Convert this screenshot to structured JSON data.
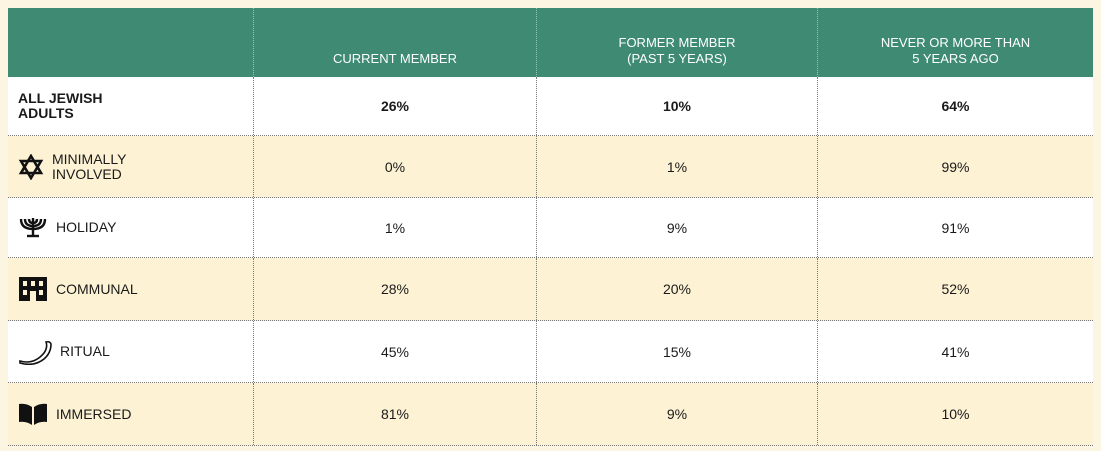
{
  "table": {
    "header": [
      "CURRENT MEMBER",
      "FORMER MEMBER (PAST 5 YEARS)",
      "NEVER OR MORE THAN 5 YEARS AGO"
    ],
    "rows": [
      {
        "label": "ALL JEWISH ADULTS",
        "values": [
          "26%",
          "10%",
          "64%"
        ]
      },
      {
        "label": "MINIMALLY INVOLVED",
        "values": [
          "0%",
          "1%",
          "99%"
        ]
      },
      {
        "label": "HOLIDAY",
        "values": [
          "1%",
          "9%",
          "91%"
        ]
      },
      {
        "label": "COMMUNAL",
        "values": [
          "28%",
          "20%",
          "52%"
        ]
      },
      {
        "label": "RITUAL",
        "values": [
          "45%",
          "15%",
          "41%"
        ]
      },
      {
        "label": "IMMERSED",
        "values": [
          "81%",
          "9%",
          "10%"
        ]
      }
    ]
  }
}
